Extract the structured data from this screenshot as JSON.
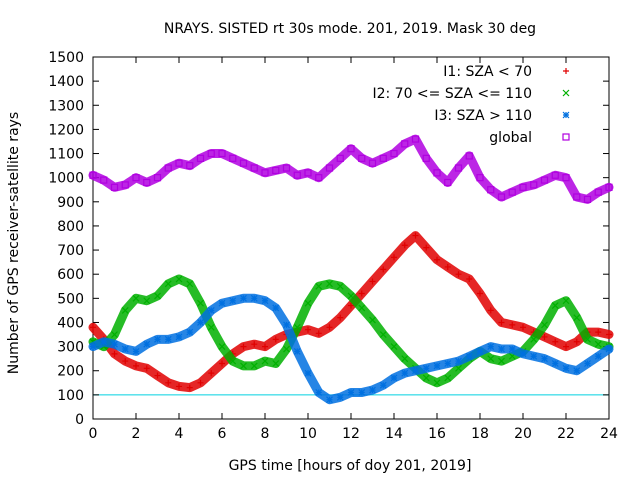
{
  "chart_data": {
    "type": "scatter",
    "title": "NRAYS. SISTED rt 30s mode. 201, 2019. Mask 30 deg",
    "xlabel": "GPS time [hours of doy 201, 2019]",
    "ylabel": "Number of GPS receiver-satellite rays",
    "xlim": [
      0,
      24
    ],
    "ylim": [
      0,
      1500
    ],
    "x_ticks": [
      "0",
      "2",
      "4",
      "6",
      "8",
      "10",
      "12",
      "14",
      "16",
      "18",
      "20",
      "22",
      "24"
    ],
    "y_ticks": [
      "0",
      "100",
      "200",
      "300",
      "400",
      "500",
      "600",
      "700",
      "800",
      "900",
      "1000",
      "1100",
      "1200",
      "1300",
      "1400",
      "1500"
    ],
    "reference_line": {
      "y": 100,
      "color": "#00d0e0"
    },
    "series": [
      {
        "name": "I1: SZA < 70",
        "color": "#e00000",
        "marker": "plus",
        "x": [
          0,
          0.5,
          1,
          1.5,
          2,
          2.5,
          3,
          3.5,
          4,
          4.5,
          5,
          5.5,
          6,
          6.5,
          7,
          7.5,
          8,
          8.5,
          9,
          9.5,
          10,
          10.5,
          11,
          11.5,
          12,
          12.5,
          13,
          13.5,
          14,
          14.5,
          15,
          15.5,
          16,
          16.5,
          17,
          17.5,
          18,
          18.5,
          19,
          19.5,
          20,
          20.5,
          21,
          21.5,
          22,
          22.5,
          23,
          23.5,
          24
        ],
        "y": [
          380,
          330,
          270,
          240,
          220,
          210,
          180,
          150,
          135,
          130,
          150,
          190,
          230,
          270,
          300,
          310,
          300,
          330,
          350,
          360,
          370,
          355,
          380,
          420,
          470,
          520,
          570,
          620,
          670,
          720,
          760,
          710,
          660,
          630,
          600,
          580,
          520,
          450,
          400,
          390,
          380,
          360,
          340,
          320,
          300,
          320,
          360,
          360,
          350
        ]
      },
      {
        "name": "I2: 70 <= SZA <= 110",
        "color": "#00b000",
        "marker": "cross",
        "x": [
          0,
          0.5,
          1,
          1.5,
          2,
          2.5,
          3,
          3.5,
          4,
          4.5,
          5,
          5.5,
          6,
          6.5,
          7,
          7.5,
          8,
          8.5,
          9,
          9.5,
          10,
          10.5,
          11,
          11.5,
          12,
          12.5,
          13,
          13.5,
          14,
          14.5,
          15,
          15.5,
          16,
          16.5,
          17,
          17.5,
          18,
          18.5,
          19,
          19.5,
          20,
          20.5,
          21,
          21.5,
          22,
          22.5,
          23,
          23.5,
          24
        ],
        "y": [
          320,
          300,
          350,
          450,
          500,
          490,
          510,
          560,
          580,
          560,
          480,
          380,
          300,
          240,
          220,
          220,
          240,
          230,
          290,
          380,
          480,
          550,
          560,
          550,
          510,
          460,
          410,
          350,
          300,
          250,
          210,
          170,
          150,
          170,
          210,
          250,
          280,
          250,
          240,
          260,
          280,
          330,
          390,
          470,
          490,
          420,
          330,
          310,
          300
        ]
      },
      {
        "name": "I3: SZA > 110",
        "color": "#0070e0",
        "marker": "star",
        "x": [
          0,
          0.5,
          1,
          1.5,
          2,
          2.5,
          3,
          3.5,
          4,
          4.5,
          5,
          5.5,
          6,
          6.5,
          7,
          7.5,
          8,
          8.5,
          9,
          9.5,
          10,
          10.5,
          11,
          11.5,
          12,
          12.5,
          13,
          13.5,
          14,
          14.5,
          15,
          15.5,
          16,
          16.5,
          17,
          17.5,
          18,
          18.5,
          19,
          19.5,
          20,
          20.5,
          21,
          21.5,
          22,
          22.5,
          23,
          23.5,
          24
        ],
        "y": [
          300,
          320,
          310,
          290,
          280,
          310,
          330,
          330,
          340,
          360,
          400,
          450,
          480,
          490,
          500,
          500,
          490,
          460,
          390,
          280,
          190,
          110,
          80,
          90,
          110,
          110,
          120,
          140,
          170,
          190,
          200,
          210,
          220,
          230,
          240,
          260,
          280,
          300,
          290,
          290,
          270,
          260,
          250,
          230,
          210,
          200,
          230,
          260,
          290
        ]
      },
      {
        "name": "global",
        "color": "#b000e0",
        "marker": "square",
        "x": [
          0,
          0.5,
          1,
          1.5,
          2,
          2.5,
          3,
          3.5,
          4,
          4.5,
          5,
          5.5,
          6,
          6.5,
          7,
          7.5,
          8,
          8.5,
          9,
          9.5,
          10,
          10.5,
          11,
          11.5,
          12,
          12.5,
          13,
          13.5,
          14,
          14.5,
          15,
          15.5,
          16,
          16.5,
          17,
          17.5,
          18,
          18.5,
          19,
          19.5,
          20,
          20.5,
          21,
          21.5,
          22,
          22.5,
          23,
          23.5,
          24
        ],
        "y": [
          1010,
          990,
          960,
          970,
          1000,
          980,
          1000,
          1040,
          1060,
          1050,
          1080,
          1100,
          1100,
          1080,
          1060,
          1040,
          1020,
          1030,
          1040,
          1010,
          1020,
          1000,
          1040,
          1080,
          1120,
          1080,
          1060,
          1080,
          1100,
          1140,
          1160,
          1080,
          1020,
          980,
          1040,
          1090,
          1000,
          950,
          920,
          940,
          960,
          970,
          990,
          1010,
          1000,
          920,
          910,
          940,
          960
        ]
      }
    ]
  }
}
